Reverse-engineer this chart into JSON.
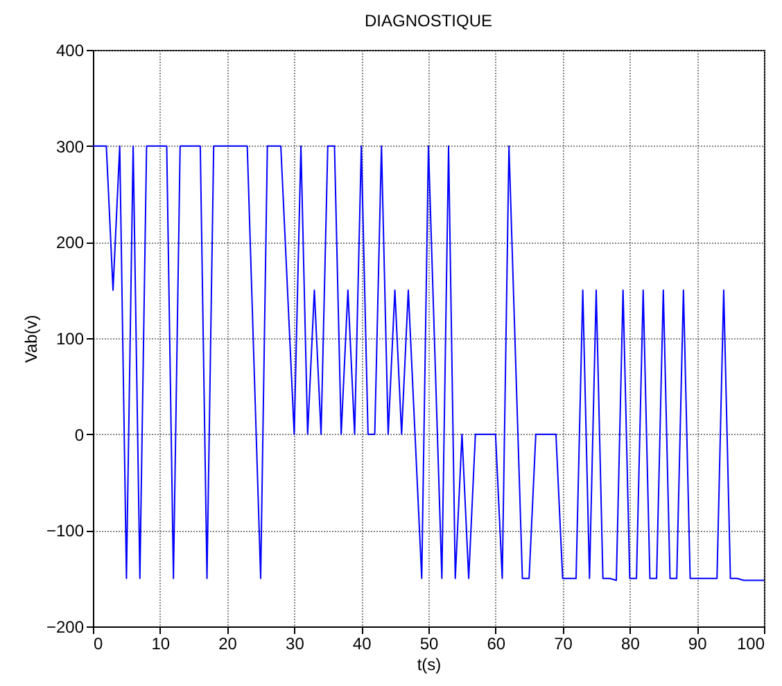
{
  "chart_data": {
    "type": "line",
    "title": "DIAGNOSTIQUE",
    "xlabel": "t(s)",
    "ylabel": "Vab(v)",
    "x": [
      0,
      1,
      2,
      3,
      4,
      5,
      6,
      7,
      8,
      9,
      10,
      11,
      12,
      13,
      14,
      15,
      16,
      17,
      18,
      19,
      20,
      21,
      22,
      23,
      24,
      25,
      26,
      27,
      28,
      29,
      30,
      31,
      32,
      33,
      34,
      35,
      36,
      37,
      38,
      39,
      40,
      41,
      42,
      43,
      44,
      45,
      46,
      47,
      48,
      49,
      50,
      51,
      52,
      53,
      54,
      55,
      56,
      57,
      58,
      59,
      60,
      61,
      62,
      63,
      64,
      65,
      66,
      67,
      68,
      69,
      70,
      71,
      72,
      73,
      74,
      75,
      76,
      77,
      78,
      79,
      80,
      81,
      82,
      83,
      84,
      85,
      86,
      87,
      88,
      89,
      90,
      91,
      92,
      93,
      94,
      95,
      96,
      97,
      98,
      99,
      100
    ],
    "series": [
      {
        "color": "#0000ff",
        "values": [
          300,
          300,
          300,
          150,
          300,
          -150,
          300,
          -150,
          300,
          300,
          300,
          300,
          -150,
          300,
          300,
          300,
          300,
          -150,
          300,
          300,
          300,
          300,
          300,
          300,
          75,
          -150,
          300,
          300,
          300,
          150,
          0,
          300,
          0,
          150,
          0,
          300,
          300,
          0,
          150,
          0,
          300,
          0,
          0,
          300,
          0,
          150,
          0,
          150,
          0,
          -150,
          300,
          75,
          -150,
          300,
          -150,
          0,
          -150,
          0,
          0,
          0,
          0,
          -150,
          300,
          75,
          -150,
          -150,
          0,
          0,
          0,
          0,
          -150,
          -150,
          -150,
          150,
          -150,
          150,
          -150,
          -150,
          -152,
          150,
          -150,
          -150,
          150,
          -150,
          -150,
          150,
          -150,
          -150,
          150,
          -150,
          -150,
          -150,
          -150,
          -150,
          150,
          -150,
          -150,
          -152,
          -152,
          -152,
          -152
        ]
      }
    ],
    "xlim": [
      0,
      100
    ],
    "ylim": [
      -200,
      400
    ],
    "xticks": [
      0,
      10,
      20,
      30,
      40,
      50,
      60,
      70,
      80,
      90,
      100
    ],
    "yticks": [
      -200,
      -100,
      0,
      100,
      200,
      300,
      400
    ],
    "grid": true,
    "marker": "none",
    "line_style": "solid"
  }
}
